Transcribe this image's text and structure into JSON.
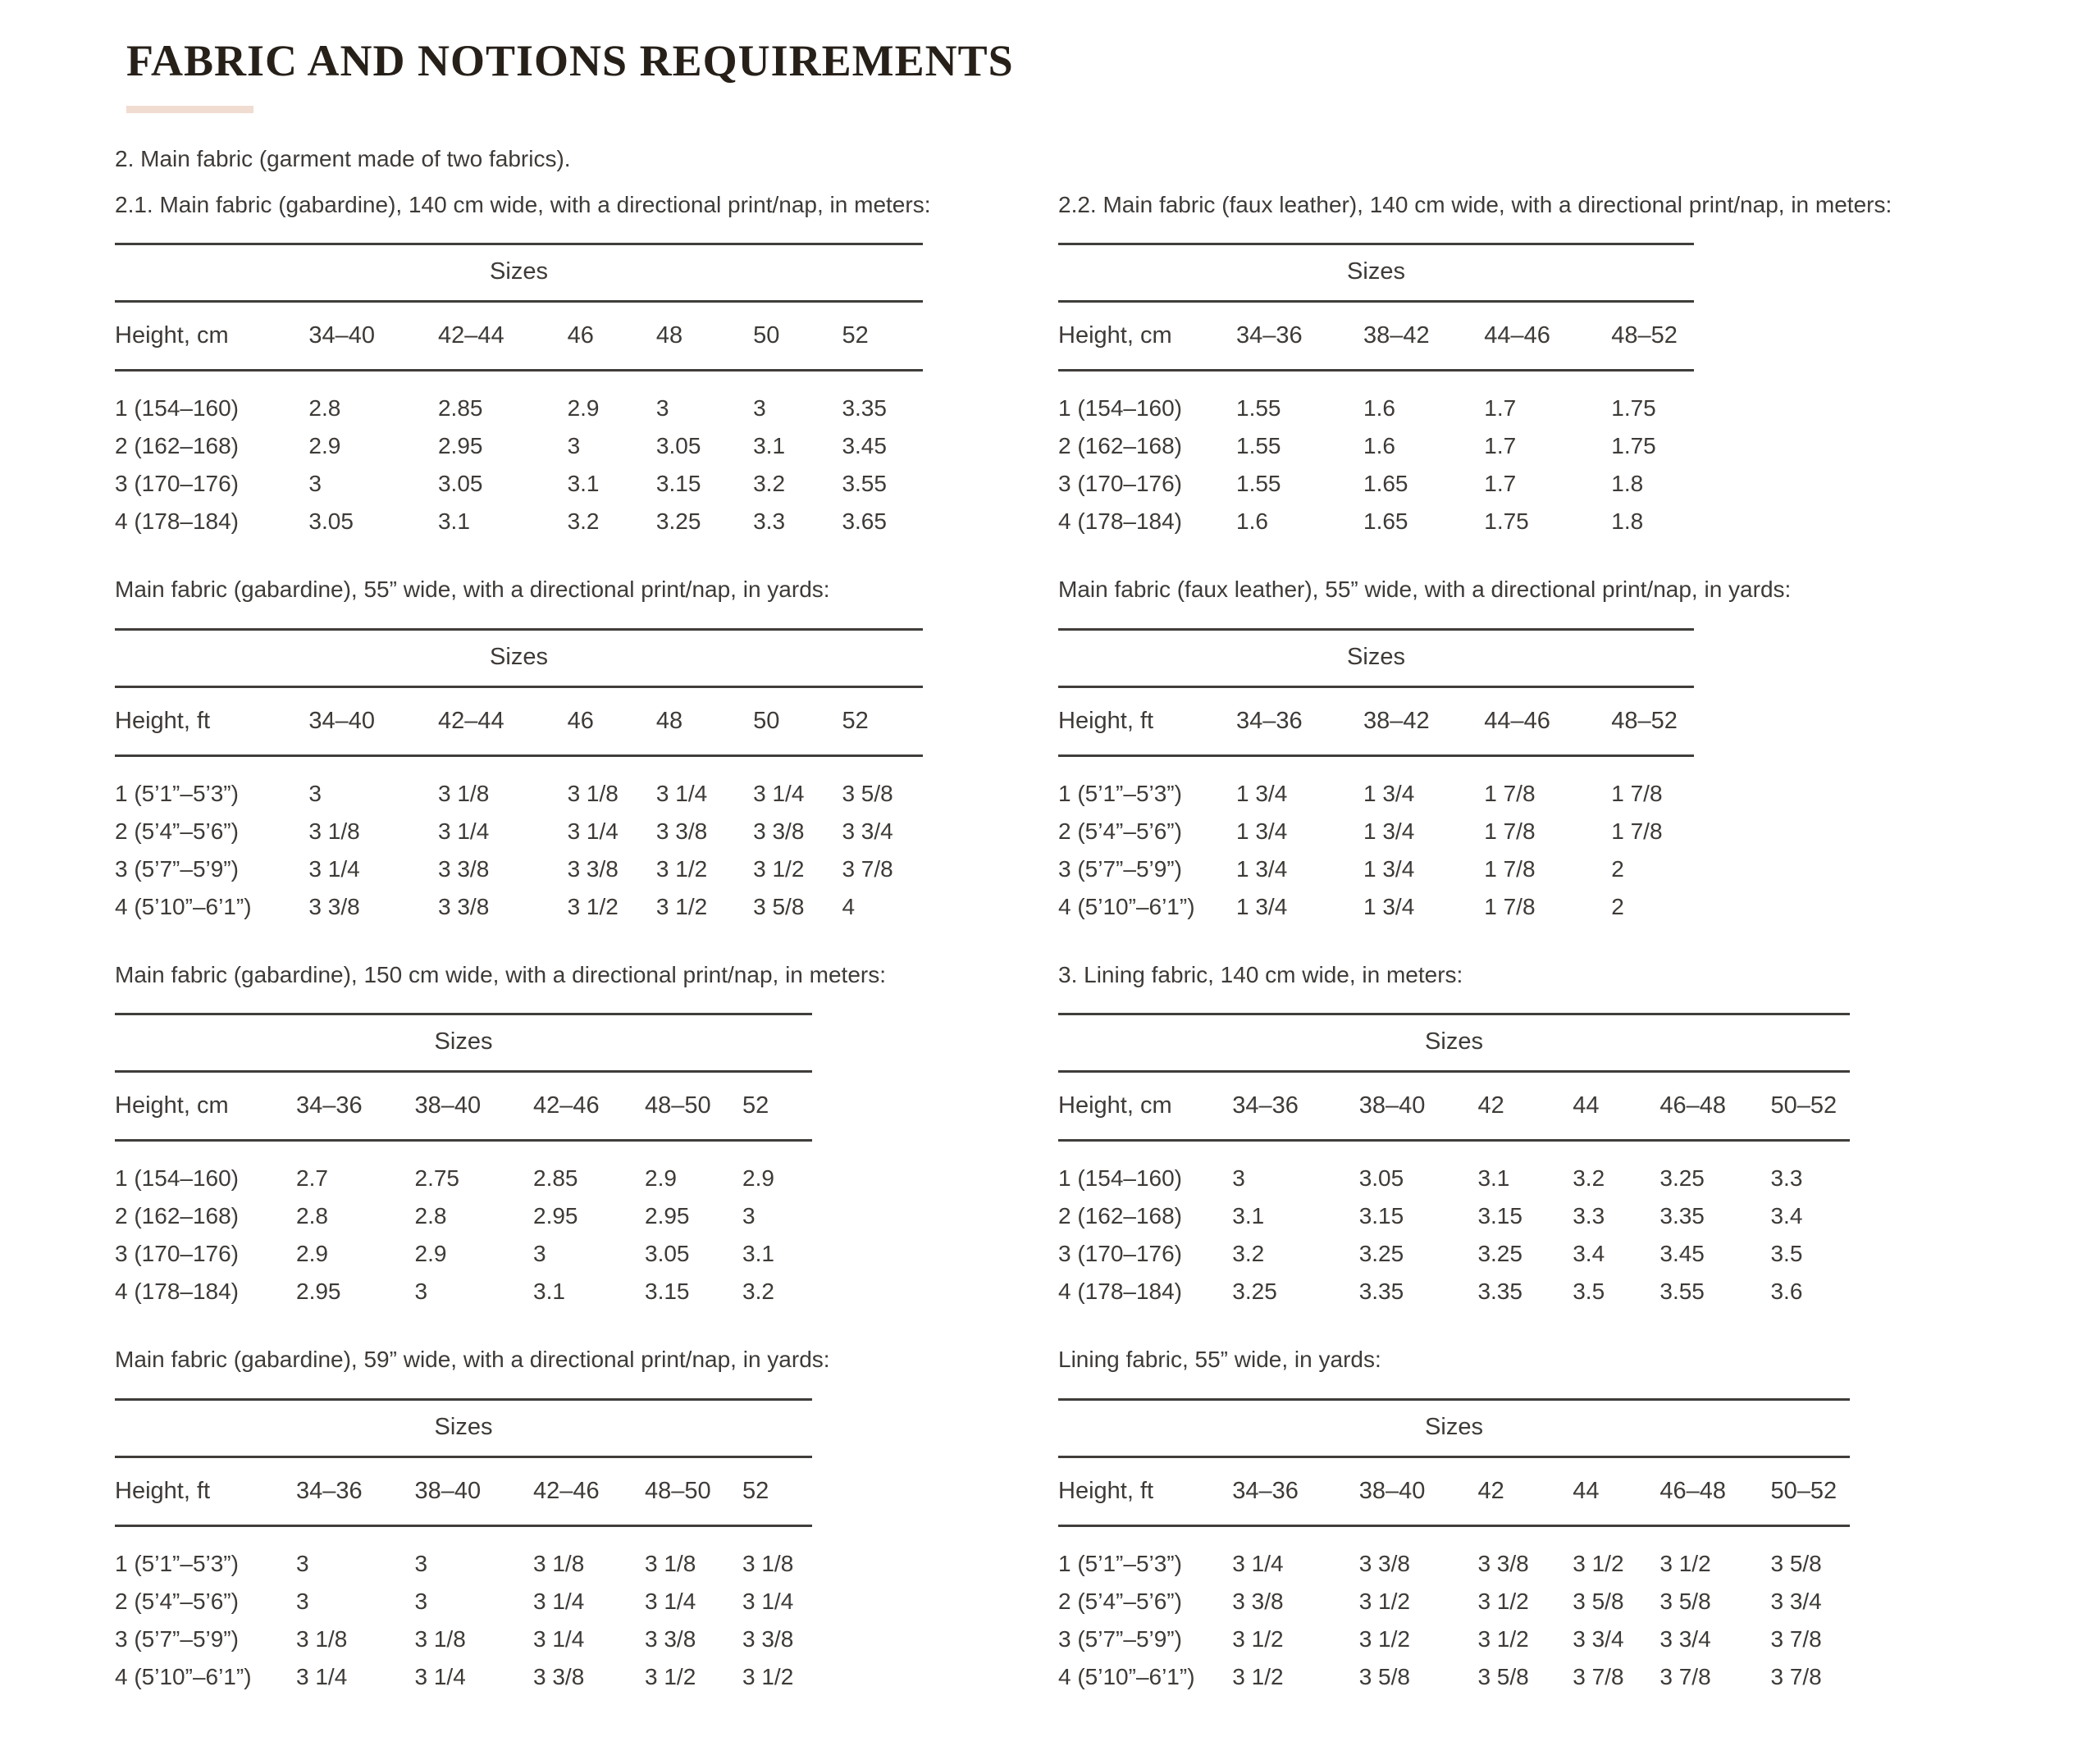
{
  "page": {
    "title": "FABRIC AND NOTIONS REQUIREMENTS",
    "intro": "2. Main fabric (garment made of two fabrics).",
    "accent_bar_color": "#f0dcd1",
    "rule_color": "#403d3a",
    "text_color": "#3e3a37"
  },
  "left_blocks": [
    {
      "caption": "2.1. Main fabric (gabardine), 140 cm wide, with a directional print/nap, in meters:",
      "sizes_label": "Sizes",
      "height_header": "Height, cm",
      "size_headers": [
        "34–40",
        "42–44",
        "46",
        "48",
        "50",
        "52"
      ],
      "rows": [
        {
          "label": "1 (154–160)",
          "values": [
            "2.8",
            "2.85",
            "2.9",
            "3",
            "3",
            "3.35"
          ]
        },
        {
          "label": "2 (162–168)",
          "values": [
            "2.9",
            "2.95",
            "3",
            "3.05",
            "3.1",
            "3.45"
          ]
        },
        {
          "label": "3 (170–176)",
          "values": [
            "3",
            "3.05",
            "3.1",
            "3.15",
            "3.2",
            "3.55"
          ]
        },
        {
          "label": "4 (178–184)",
          "values": [
            "3.05",
            "3.1",
            "3.2",
            "3.25",
            "3.3",
            "3.65"
          ]
        }
      ]
    },
    {
      "caption": "Main fabric (gabardine), 55” wide, with a directional print/nap, in yards:",
      "sizes_label": "Sizes",
      "height_header": "Height, ft",
      "size_headers": [
        "34–40",
        "42–44",
        "46",
        "48",
        "50",
        "52"
      ],
      "rows": [
        {
          "label": "1 (5’1”–5’3”)",
          "values": [
            "3",
            "3 1/8",
            "3 1/8",
            "3 1/4",
            "3 1/4",
            "3 5/8"
          ]
        },
        {
          "label": "2 (5’4”–5’6”)",
          "values": [
            "3 1/8",
            "3 1/4",
            "3 1/4",
            "3 3/8",
            "3 3/8",
            "3 3/4"
          ]
        },
        {
          "label": "3 (5’7”–5’9”)",
          "values": [
            "3 1/4",
            "3 3/8",
            "3 3/8",
            "3 1/2",
            "3 1/2",
            "3 7/8"
          ]
        },
        {
          "label": "4 (5’10”–6’1”)",
          "values": [
            "3 3/8",
            "3 3/8",
            "3 1/2",
            "3 1/2",
            "3 5/8",
            "4"
          ]
        }
      ]
    },
    {
      "caption": "Main fabric (gabardine), 150 cm wide, with a directional print/nap, in meters:",
      "sizes_label": "Sizes",
      "height_header": "Height, cm",
      "size_headers": [
        "34–36",
        "38–40",
        "42–46",
        "48–50",
        "52"
      ],
      "rows": [
        {
          "label": "1 (154–160)",
          "values": [
            "2.7",
            "2.75",
            "2.85",
            "2.9",
            "2.9"
          ]
        },
        {
          "label": "2 (162–168)",
          "values": [
            "2.8",
            "2.8",
            "2.95",
            "2.95",
            "3"
          ]
        },
        {
          "label": "3 (170–176)",
          "values": [
            "2.9",
            "2.9",
            "3",
            "3.05",
            "3.1"
          ]
        },
        {
          "label": "4 (178–184)",
          "values": [
            "2.95",
            "3",
            "3.1",
            "3.15",
            "3.2"
          ]
        }
      ]
    },
    {
      "caption": "Main fabric (gabardine), 59” wide, with a directional print/nap, in yards:",
      "sizes_label": "Sizes",
      "height_header": "Height, ft",
      "size_headers": [
        "34–36",
        "38–40",
        "42–46",
        "48–50",
        "52"
      ],
      "rows": [
        {
          "label": "1 (5’1”–5’3”)",
          "values": [
            "3",
            "3",
            "3 1/8",
            "3 1/8",
            "3 1/8"
          ]
        },
        {
          "label": "2 (5’4”–5’6”)",
          "values": [
            "3",
            "3",
            "3 1/4",
            "3 1/4",
            "3 1/4"
          ]
        },
        {
          "label": "3 (5’7”–5’9”)",
          "values": [
            "3 1/8",
            "3 1/8",
            "3 1/4",
            "3 3/8",
            "3 3/8"
          ]
        },
        {
          "label": "4 (5’10”–6’1”)",
          "values": [
            "3 1/4",
            "3 1/4",
            "3 3/8",
            "3 1/2",
            "3 1/2"
          ]
        }
      ]
    }
  ],
  "right_blocks": [
    {
      "caption": "2.2. Main fabric (faux leather), 140 cm wide, with a directional print/nap, in meters:",
      "sizes_label": "Sizes",
      "height_header": "Height, cm",
      "size_headers": [
        "34–36",
        "38–42",
        "44–46",
        "48–52"
      ],
      "rows": [
        {
          "label": "1 (154–160)",
          "values": [
            "1.55",
            "1.6",
            "1.7",
            "1.75"
          ]
        },
        {
          "label": "2 (162–168)",
          "values": [
            "1.55",
            "1.6",
            "1.7",
            "1.75"
          ]
        },
        {
          "label": "3 (170–176)",
          "values": [
            "1.55",
            "1.65",
            "1.7",
            "1.8"
          ]
        },
        {
          "label": "4 (178–184)",
          "values": [
            "1.6",
            "1.65",
            "1.75",
            "1.8"
          ]
        }
      ]
    },
    {
      "caption": "Main fabric (faux leather), 55” wide, with a directional print/nap, in yards:",
      "sizes_label": "Sizes",
      "height_header": "Height, ft",
      "size_headers": [
        "34–36",
        "38–42",
        "44–46",
        "48–52"
      ],
      "rows": [
        {
          "label": "1 (5’1”–5’3”)",
          "values": [
            "1 3/4",
            "1 3/4",
            "1 7/8",
            "1 7/8"
          ]
        },
        {
          "label": "2 (5’4”–5’6”)",
          "values": [
            "1 3/4",
            "1 3/4",
            "1 7/8",
            "1 7/8"
          ]
        },
        {
          "label": "3 (5’7”–5’9”)",
          "values": [
            "1 3/4",
            "1 3/4",
            "1 7/8",
            "2"
          ]
        },
        {
          "label": "4 (5’10”–6’1”)",
          "values": [
            "1 3/4",
            "1 3/4",
            "1 7/8",
            "2"
          ]
        }
      ]
    },
    {
      "caption": "3. Lining fabric, 140 cm wide, in meters:",
      "sizes_label": "Sizes",
      "height_header": "Height, cm",
      "size_headers": [
        "34–36",
        "38–40",
        "42",
        "44",
        "46–48",
        "50–52"
      ],
      "rows": [
        {
          "label": "1 (154–160)",
          "values": [
            "3",
            "3.05",
            "3.1",
            "3.2",
            "3.25",
            "3.3"
          ]
        },
        {
          "label": "2 (162–168)",
          "values": [
            "3.1",
            "3.15",
            "3.15",
            "3.3",
            "3.35",
            "3.4"
          ]
        },
        {
          "label": "3 (170–176)",
          "values": [
            "3.2",
            "3.25",
            "3.25",
            "3.4",
            "3.45",
            "3.5"
          ]
        },
        {
          "label": "4 (178–184)",
          "values": [
            "3.25",
            "3.35",
            "3.35",
            "3.5",
            "3.55",
            "3.6"
          ]
        }
      ]
    },
    {
      "caption": "Lining fabric, 55” wide, in yards:",
      "sizes_label": "Sizes",
      "height_header": "Height, ft",
      "size_headers": [
        "34–36",
        "38–40",
        "42",
        "44",
        "46–48",
        "50–52"
      ],
      "rows": [
        {
          "label": "1 (5’1”–5’3”)",
          "values": [
            "3 1/4",
            "3 3/8",
            "3 3/8",
            "3 1/2",
            "3 1/2",
            "3 5/8"
          ]
        },
        {
          "label": "2 (5’4”–5’6”)",
          "values": [
            "3 3/8",
            "3 1/2",
            "3 1/2",
            "3 5/8",
            "3 5/8",
            "3 3/4"
          ]
        },
        {
          "label": "3 (5’7”–5’9”)",
          "values": [
            "3 1/2",
            "3 1/2",
            "3 1/2",
            "3 3/4",
            "3 3/4",
            "3 7/8"
          ]
        },
        {
          "label": "4 (5’10”–6’1”)",
          "values": [
            "3 1/2",
            "3 5/8",
            "3 5/8",
            "3 7/8",
            "3 7/8",
            "3 7/8"
          ]
        }
      ]
    }
  ]
}
